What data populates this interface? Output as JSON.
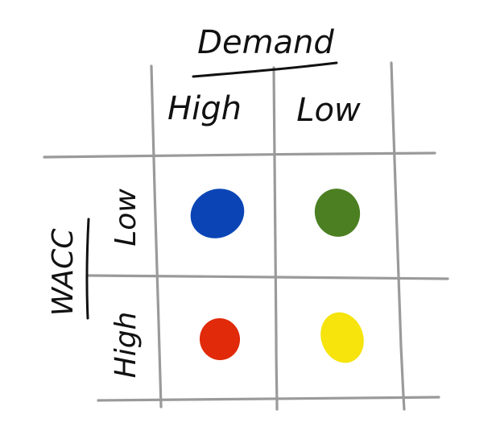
{
  "matrix": {
    "column_axis": {
      "title": "Demand",
      "columns": [
        {
          "label": "High"
        },
        {
          "label": "Low"
        }
      ]
    },
    "row_axis": {
      "title": "WACC",
      "rows": [
        {
          "label": "Low"
        },
        {
          "label": "High"
        }
      ]
    },
    "cells": [
      {
        "row": "Low",
        "column": "High",
        "dot_color": "#0b45b5"
      },
      {
        "row": "Low",
        "column": "Low",
        "dot_color": "#4c7f22"
      },
      {
        "row": "High",
        "column": "High",
        "dot_color": "#e02a0a"
      },
      {
        "row": "High",
        "column": "Low",
        "dot_color": "#f6e40c"
      }
    ]
  }
}
